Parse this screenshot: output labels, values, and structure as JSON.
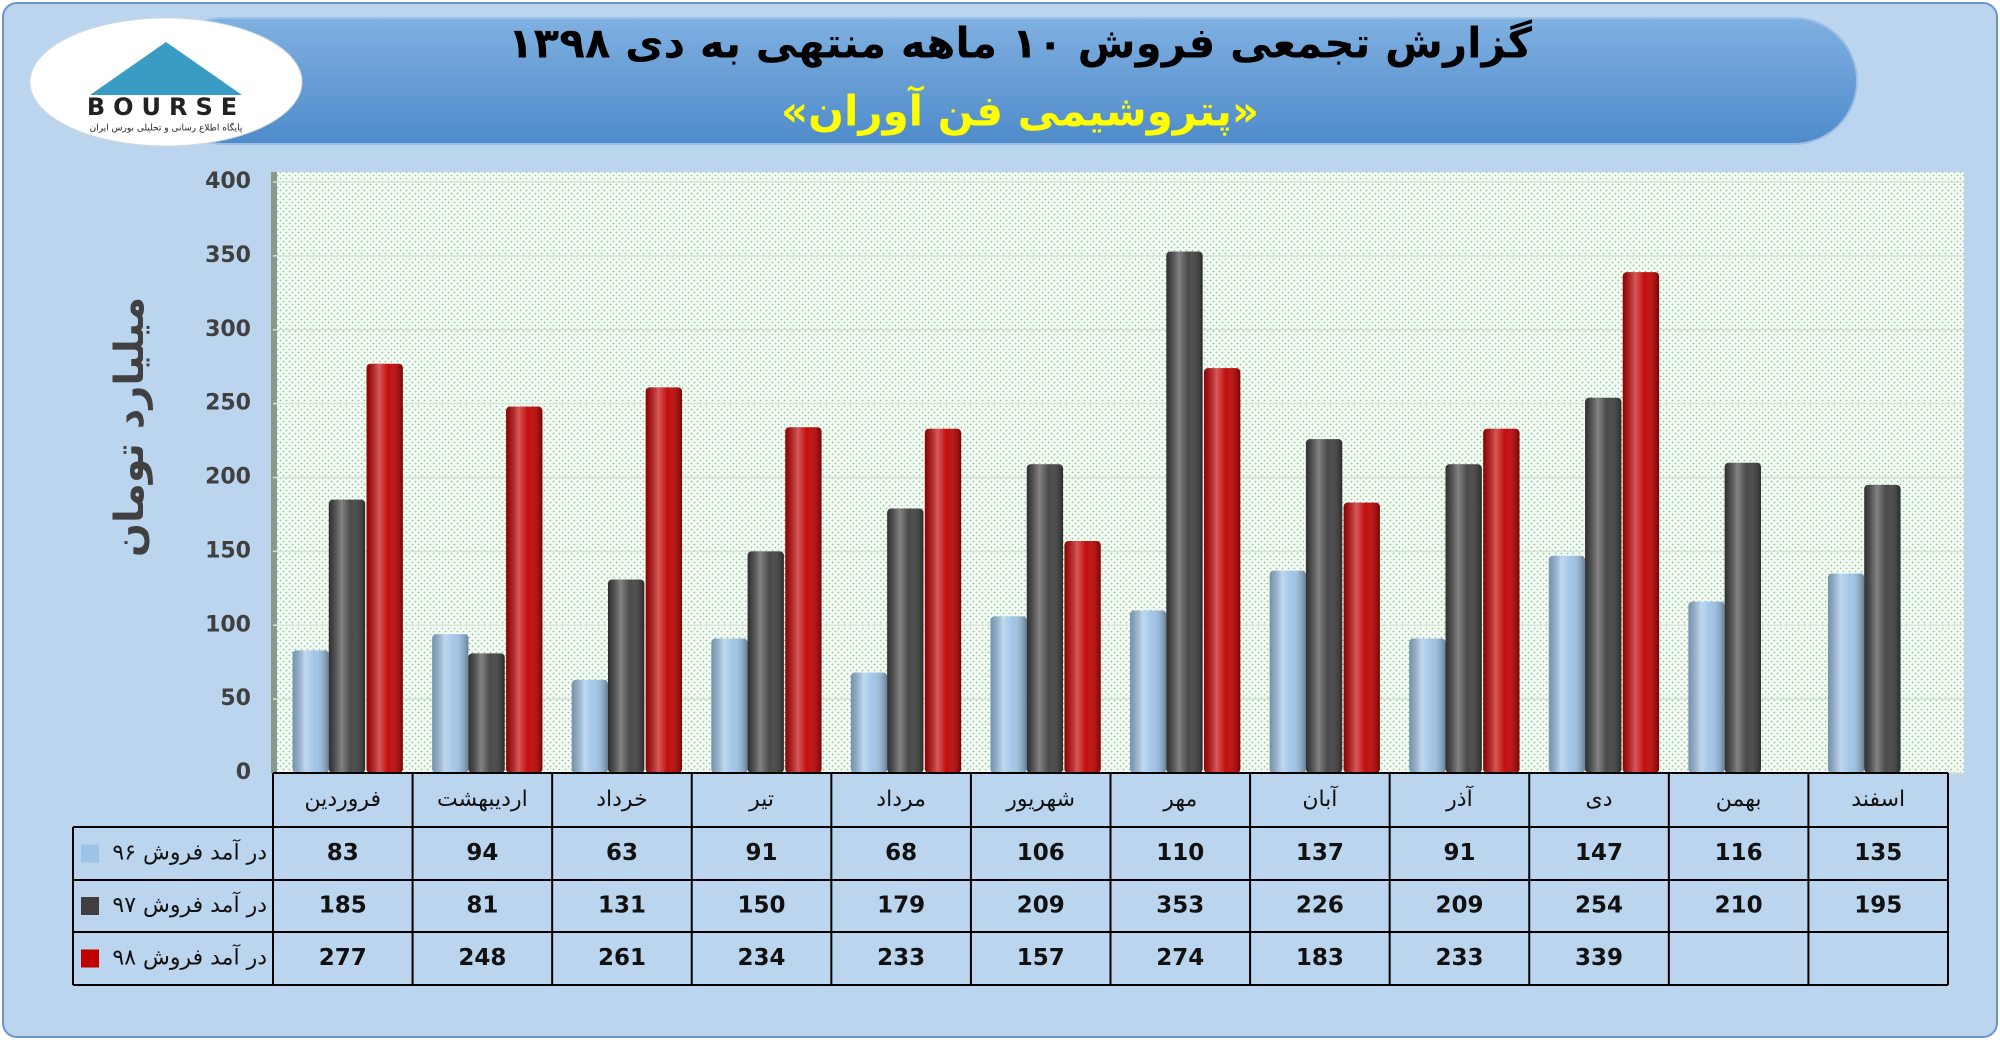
{
  "logo": {
    "text": "BOURSE",
    "tagline": "پایگاه اطلاع رسانی و تحلیلی بورس ایران"
  },
  "chart_data": {
    "type": "bar",
    "title": "گزارش تجمعی فروش ۱۰ ماهه منتهی به دی ۱۳۹۸",
    "subtitle": "«پتروشیمی فن آوران»",
    "y_label": "میلیارد تومان",
    "categories": [
      "فروردین",
      "اردیبهشت",
      "خرداد",
      "تیر",
      "مرداد",
      "شهریور",
      "مهر",
      "آبان",
      "آذر",
      "دی",
      "بهمن",
      "اسفند"
    ],
    "series": [
      {
        "name": "در آمد فروش ۹۶",
        "color": "#9dc3e6",
        "values": [
          83,
          94,
          63,
          91,
          68,
          106,
          110,
          137,
          91,
          147,
          116,
          135
        ]
      },
      {
        "name": "در آمد فروش ۹۷",
        "color": "#404040",
        "values": [
          185,
          81,
          131,
          150,
          179,
          209,
          353,
          226,
          209,
          254,
          210,
          195
        ]
      },
      {
        "name": "در آمد فروش ۹۸",
        "color": "#c00000",
        "values": [
          277,
          248,
          261,
          234,
          233,
          157,
          274,
          183,
          233,
          339,
          null,
          null
        ]
      }
    ],
    "ylim": [
      0,
      400
    ],
    "yticks": [
      0,
      50,
      100,
      150,
      200,
      250,
      300,
      350,
      400
    ],
    "grid": true,
    "data_table": true
  }
}
